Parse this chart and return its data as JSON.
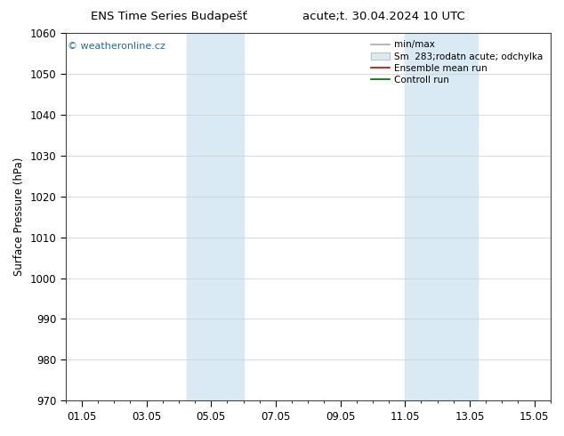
{
  "title_left": "ENS Time Series Budapešť",
  "title_right": "acute;t. 30.04.2024 10 UTC",
  "ylabel": "Surface Pressure (hPa)",
  "ylim": [
    970,
    1060
  ],
  "yticks": [
    970,
    980,
    990,
    1000,
    1010,
    1020,
    1030,
    1040,
    1050,
    1060
  ],
  "xlabel": "",
  "xtick_labels": [
    "01.05",
    "03.05",
    "05.05",
    "07.05",
    "09.05",
    "11.05",
    "13.05",
    "15.05"
  ],
  "xtick_positions": [
    0,
    4,
    8,
    12,
    16,
    20,
    24,
    28
  ],
  "xmin": -1,
  "xmax": 29,
  "shaded_bands": [
    {
      "xmin": 6.5,
      "xmax": 10.0,
      "color": "#daeaf5"
    },
    {
      "xmin": 20.0,
      "xmax": 24.5,
      "color": "#daeaf5"
    }
  ],
  "watermark": "© weatheronline.cz",
  "watermark_color": "#1a6fa8",
  "legend_items": [
    {
      "label": "min/max",
      "type": "hline",
      "color": "#aaaaaa"
    },
    {
      "label": "Sm  283;rodatn acute; odchylka",
      "type": "fill",
      "color": "#daeaf5"
    },
    {
      "label": "Ensemble mean run",
      "type": "line",
      "color": "#cc0000"
    },
    {
      "label": "Controll run",
      "type": "line",
      "color": "#006600"
    }
  ],
  "bg_color": "#ffffff",
  "plot_bg_color": "#ffffff",
  "grid_color": "#cccccc",
  "font_size": 8.5,
  "title_font_size": 9.5
}
